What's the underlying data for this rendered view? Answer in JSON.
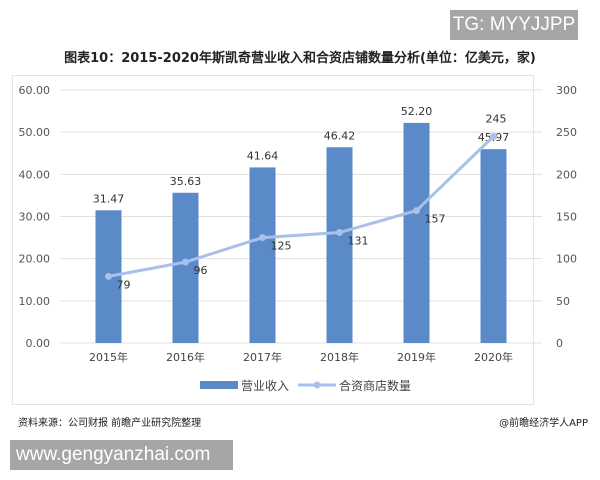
{
  "watermark_top": "TG: MYYJJPP",
  "watermark_bottom": "www.gengyanzhai.com",
  "source": "资料来源：公司财报 前瞻产业研究院整理",
  "credit": "@前瞻经济学人APP",
  "chart_data": {
    "type": "bar+line",
    "title": "图表10：2015-2020年斯凯奇营业收入和合资店铺数量分析(单位：亿美元，家)",
    "categories": [
      "2015年",
      "2016年",
      "2017年",
      "2018年",
      "2019年",
      "2020年"
    ],
    "series": [
      {
        "name": "营业收入",
        "type": "bar",
        "axis": "left",
        "values": [
          31.47,
          35.63,
          41.64,
          46.42,
          52.2,
          45.97
        ],
        "labels": [
          "31.47",
          "35.63",
          "41.64",
          "46.42",
          "52.20",
          "45.97"
        ],
        "color": "#5b8ac9"
      },
      {
        "name": "合资商店数量",
        "type": "line",
        "axis": "right",
        "values": [
          79,
          96,
          125,
          131,
          157,
          245
        ],
        "color": "#a9c1ea"
      }
    ],
    "left_axis": {
      "ylim": [
        0,
        60
      ],
      "ticks": [
        "0.00",
        "10.00",
        "20.00",
        "30.00",
        "40.00",
        "50.00",
        "60.00"
      ]
    },
    "right_axis": {
      "ylim": [
        0,
        300
      ],
      "ticks": [
        "0",
        "50",
        "100",
        "150",
        "200",
        "250",
        "300"
      ]
    },
    "grid": true,
    "legend": "bottom"
  }
}
